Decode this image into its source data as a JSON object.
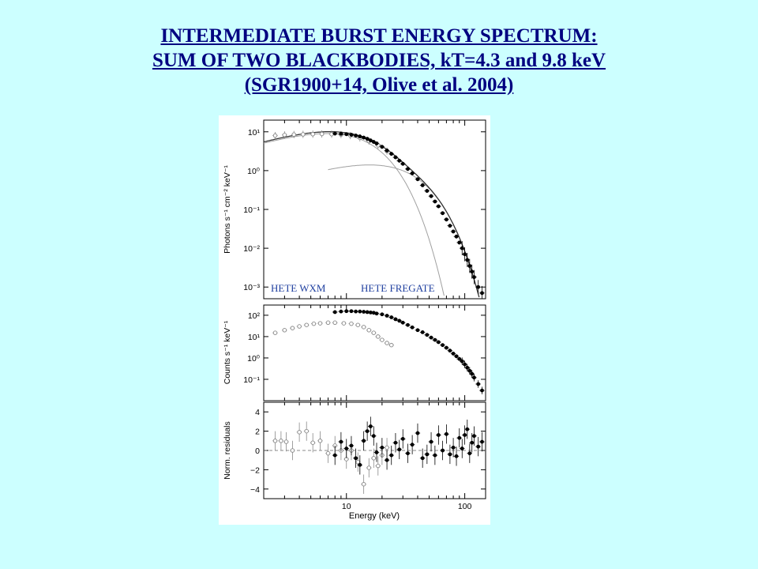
{
  "slide": {
    "title_lines": [
      "INTERMEDIATE BURST ENERGY SPECTRUM:",
      "SUM OF TWO BLACKBODIES, kT=4.3 and 9.8 keV",
      "(SGR1900+14, Olive et al. 2004)"
    ],
    "background_color": "#ccffff",
    "title_color": "#000080"
  },
  "chart_data": [
    {
      "type": "scatter",
      "panel": "top",
      "xlabel": "Energy (keV)",
      "ylabel": "Photons s⁻¹ cm⁻² keV⁻¹",
      "xscale": "log",
      "yscale": "log",
      "xlim": [
        2,
        150
      ],
      "ylim": [
        0.0005,
        20
      ],
      "x_ticks": [
        10,
        100
      ],
      "y_ticks": [
        {
          "value": 10,
          "label": "10¹"
        },
        {
          "value": 1,
          "label": "10⁰"
        },
        {
          "value": 0.1,
          "label": "10⁻¹"
        },
        {
          "value": 0.01,
          "label": "10⁻²"
        },
        {
          "value": 0.001,
          "label": "10⁻³"
        }
      ],
      "annotations": [
        {
          "text": "HETE WXM",
          "color": "#1f3f9f"
        },
        {
          "text": "HETE FREGATE",
          "color": "#1f3f9f"
        }
      ],
      "series": [
        {
          "role": "WXM data",
          "color": "#888888",
          "marker": "open-circle",
          "x": [
            2.5,
            3.0,
            3.6,
            4.3,
            5.2,
            6.2,
            7.5,
            9.0,
            10.8,
            13.0,
            15.5,
            18.5,
            22.0
          ],
          "y": [
            8.0,
            8.3,
            8.5,
            8.6,
            8.7,
            8.8,
            8.7,
            8.5,
            8.0,
            7.0,
            5.8,
            4.5,
            3.2
          ]
        },
        {
          "role": "FREGATE data",
          "color": "#000000",
          "marker": "filled-circle",
          "x": [
            8,
            9,
            10,
            11,
            12,
            13,
            14,
            15,
            16,
            17,
            18,
            20,
            22,
            24,
            26,
            28,
            30,
            33,
            36,
            40,
            44,
            48,
            52,
            56,
            60,
            65,
            70,
            75,
            80,
            85,
            90,
            95,
            100,
            105,
            110,
            115,
            120,
            130,
            140
          ],
          "y": [
            9.0,
            8.9,
            8.7,
            8.4,
            8.0,
            7.6,
            7.1,
            6.6,
            6.0,
            5.5,
            5.0,
            4.1,
            3.3,
            2.7,
            2.2,
            1.8,
            1.5,
            1.1,
            0.85,
            0.6,
            0.42,
            0.3,
            0.22,
            0.16,
            0.12,
            0.08,
            0.055,
            0.038,
            0.027,
            0.02,
            0.014,
            0.01,
            0.007,
            0.005,
            0.0035,
            0.0025,
            0.0018,
            0.001,
            0.0007
          ]
        }
      ],
      "models": [
        {
          "role": "blackbody kT=4.3 keV",
          "color": "#a0a0a0",
          "kT": 4.3,
          "norm": 9.0,
          "peak_x": 6.8,
          "x_range": [
            2,
            68
          ]
        },
        {
          "role": "blackbody kT=9.8 keV",
          "color": "#a0a0a0",
          "kT": 9.8,
          "norm": 1.4,
          "peak_x": 15.6,
          "x_range": [
            7,
            120
          ]
        },
        {
          "role": "total model",
          "color": "#333333",
          "x_range": [
            2,
            135
          ]
        }
      ]
    },
    {
      "type": "scatter",
      "panel": "middle",
      "xlabel": "Energy (keV)",
      "ylabel": "Counts s⁻¹ keV⁻¹",
      "xscale": "log",
      "yscale": "log",
      "xlim": [
        2,
        150
      ],
      "ylim": [
        0.01,
        300
      ],
      "y_ticks": [
        {
          "value": 100,
          "label": "10²"
        },
        {
          "value": 10,
          "label": "10¹"
        },
        {
          "value": 1,
          "label": "10⁰"
        },
        {
          "value": 0.1,
          "label": "10⁻¹"
        }
      ],
      "series": [
        {
          "role": "WXM counts",
          "color": "#888888",
          "marker": "open-circle",
          "x": [
            2.5,
            3.0,
            3.5,
            4.0,
            4.6,
            5.3,
            6.0,
            7.0,
            8.0,
            9.5,
            11.0,
            12.5,
            14.0,
            15.5,
            17.0,
            18.5,
            20.0,
            22.0,
            24.0
          ],
          "y": [
            15,
            20,
            25,
            30,
            35,
            40,
            42,
            45,
            45,
            42,
            40,
            35,
            28,
            20,
            15,
            10,
            7,
            5,
            4
          ]
        },
        {
          "role": "FREGATE counts",
          "color": "#000000",
          "marker": "filled-circle",
          "x": [
            8,
            9,
            10,
            11,
            12,
            13,
            14,
            15,
            16,
            17,
            18,
            20,
            22,
            24,
            26,
            28,
            30,
            33,
            36,
            40,
            44,
            48,
            52,
            56,
            60,
            65,
            70,
            75,
            80,
            85,
            90,
            95,
            100,
            105,
            110,
            115,
            120,
            130,
            140
          ],
          "y": [
            140,
            150,
            155,
            155,
            150,
            150,
            145,
            140,
            135,
            130,
            120,
            110,
            95,
            80,
            65,
            55,
            45,
            35,
            27,
            20,
            16,
            12,
            9,
            7,
            5.5,
            4,
            3,
            2.2,
            1.6,
            1.2,
            0.9,
            0.7,
            0.5,
            0.35,
            0.25,
            0.18,
            0.12,
            0.06,
            0.03
          ]
        }
      ]
    },
    {
      "type": "scatter",
      "panel": "bottom",
      "xlabel": "Energy (keV)",
      "ylabel": "Norm. residuals",
      "xscale": "log",
      "yscale": "linear",
      "xlim": [
        2,
        150
      ],
      "ylim": [
        -5,
        5
      ],
      "x_ticks": [
        10,
        100
      ],
      "y_ticks": [
        {
          "value": 4,
          "label": "4"
        },
        {
          "value": 2,
          "label": "2"
        },
        {
          "value": 0,
          "label": "0"
        },
        {
          "value": -2,
          "label": "−2"
        },
        {
          "value": -4,
          "label": "−4"
        }
      ],
      "series": [
        {
          "role": "WXM residuals",
          "color": "#888888",
          "marker": "open-circle",
          "x": [
            2.5,
            2.8,
            3.1,
            3.5,
            4.0,
            4.6,
            5.2,
            6.0,
            7.0,
            8.0,
            9.0,
            10.0,
            11.0,
            12.5,
            14.0,
            15.5,
            17.0,
            18.5,
            20.0,
            22.0
          ],
          "y": [
            1.0,
            1.0,
            0.9,
            0.0,
            1.9,
            2.0,
            0.8,
            1.0,
            -0.3,
            0.5,
            0.0,
            -0.9,
            0.0,
            -1.2,
            -3.5,
            -1.8,
            -0.8,
            -1.6,
            -0.5,
            0.3
          ]
        },
        {
          "role": "FREGATE residuals",
          "color": "#000000",
          "marker": "filled-circle",
          "x": [
            8,
            9,
            10,
            11,
            12,
            13,
            14,
            15,
            16,
            17,
            18,
            20,
            22,
            24,
            26,
            28,
            30,
            33,
            36,
            40,
            44,
            48,
            52,
            56,
            60,
            65,
            70,
            75,
            80,
            85,
            90,
            95,
            100,
            105,
            110,
            115,
            120,
            130,
            140
          ],
          "y": [
            -0.5,
            0.9,
            0.2,
            0.5,
            -0.8,
            -1.5,
            1.0,
            2.0,
            2.5,
            1.5,
            -0.2,
            0.3,
            -1.0,
            -0.5,
            0.8,
            0.1,
            1.2,
            -0.3,
            0.6,
            1.8,
            -0.8,
            -0.4,
            0.9,
            -0.5,
            1.6,
            0.0,
            1.7,
            -0.4,
            0.3,
            -0.6,
            1.3,
            0.2,
            1.6,
            2.2,
            -0.3,
            0.8,
            1.5,
            0.4,
            0.9
          ]
        }
      ]
    }
  ]
}
